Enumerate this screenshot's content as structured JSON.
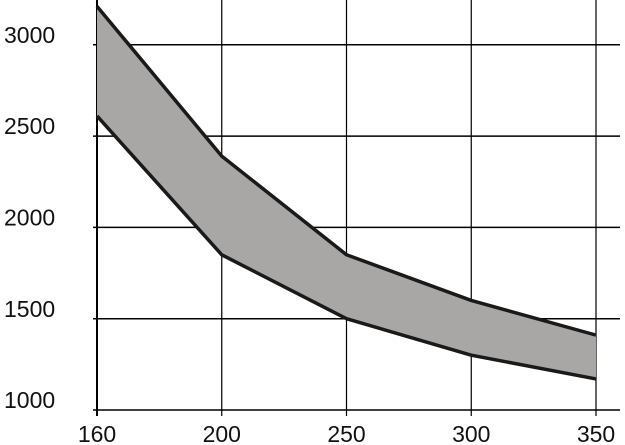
{
  "chart_data": {
    "type": "range-area",
    "categories": [
      "160",
      "200",
      "250",
      "300",
      "350"
    ],
    "series": [
      {
        "values": [
          3210,
          2390,
          1850,
          1600,
          1410
        ]
      },
      {
        "values": [
          2610,
          1850,
          1500,
          1300,
          1170
        ]
      }
    ],
    "color": "#a9a6a6",
    "ylim": [
      1000,
      3210
    ],
    "yticks": [
      1000,
      1500,
      2000,
      2500,
      3000
    ],
    "grid": true
  }
}
